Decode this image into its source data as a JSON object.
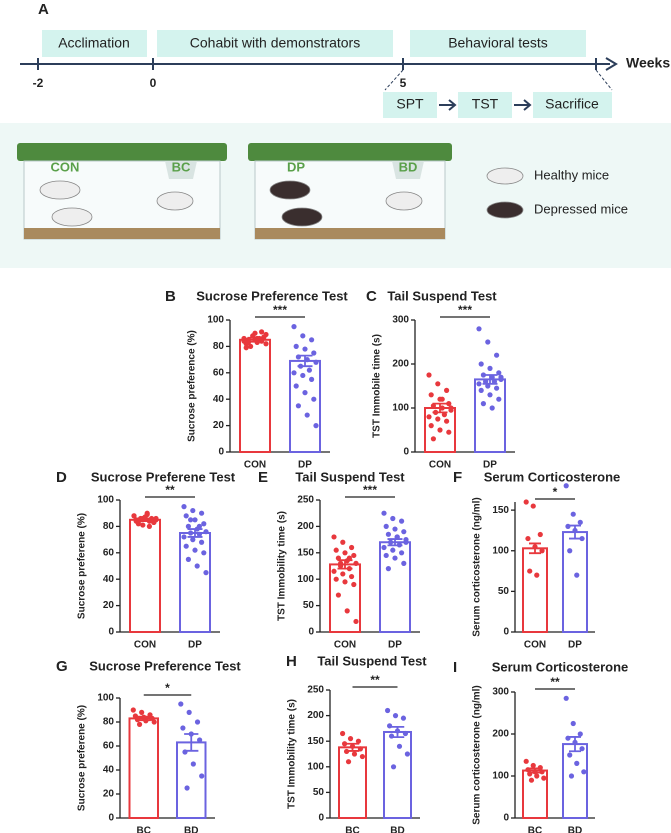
{
  "panel_a": {
    "label": "A",
    "phases": [
      "Acclimation",
      "Cohabit with demonstrators",
      "Behavioral tests"
    ],
    "axis_ticks": [
      "-2",
      "0",
      "5"
    ],
    "axis_label": "Weeks",
    "steps": [
      "SPT",
      "TST",
      "Sacrifice"
    ]
  },
  "housing": {
    "cages": [
      [
        "CON",
        "BC"
      ],
      [
        "DP",
        "BD"
      ]
    ],
    "legend": [
      "Healthy mice",
      "Depressed mice"
    ]
  },
  "chart_data": [
    {
      "type": "bar",
      "panel": "B",
      "title": "Sucrose Preference Test",
      "ylabel": "Sucrose  preference (%)",
      "categories": [
        "CON",
        "DP"
      ],
      "colors": [
        "#e8383d",
        "#6b63e0"
      ],
      "values": [
        85,
        69
      ],
      "errors": [
        1.5,
        4
      ],
      "significance": "***",
      "ylim": [
        0,
        100
      ],
      "yticks": [
        0,
        20,
        40,
        60,
        80,
        100
      ],
      "points": [
        [
          86,
          88,
          84,
          82,
          90,
          87,
          85,
          83,
          89,
          80,
          86,
          84,
          88,
          91,
          79,
          85,
          87,
          83,
          86,
          82
        ],
        [
          95,
          88,
          85,
          80,
          78,
          75,
          72,
          70,
          68,
          65,
          62,
          60,
          58,
          55,
          50,
          45,
          40,
          35,
          28,
          20
        ]
      ]
    },
    {
      "type": "bar",
      "panel": "C",
      "title": "Tail Suspend Test",
      "ylabel": "TST Immobile  time (s)",
      "categories": [
        "CON",
        "DP"
      ],
      "colors": [
        "#e8383d",
        "#6b63e0"
      ],
      "values": [
        100,
        165
      ],
      "errors": [
        10,
        10
      ],
      "significance": "***",
      "ylim": [
        0,
        300
      ],
      "yticks": [
        0,
        100,
        200,
        300
      ],
      "points": [
        [
          175,
          155,
          140,
          130,
          120,
          110,
          105,
          100,
          95,
          90,
          85,
          80,
          75,
          70,
          60,
          50,
          45,
          30,
          120,
          100
        ],
        [
          280,
          250,
          220,
          200,
          190,
          180,
          175,
          170,
          165,
          160,
          160,
          155,
          150,
          145,
          140,
          130,
          120,
          110,
          100,
          170
        ]
      ]
    },
    {
      "type": "bar",
      "panel": "D",
      "title": "Sucrose Preferene Test",
      "ylabel": "Sucrose preferene (%)",
      "categories": [
        "CON",
        "DP"
      ],
      "colors": [
        "#e8383d",
        "#6b63e0"
      ],
      "values": [
        85,
        75
      ],
      "errors": [
        1,
        3
      ],
      "significance": "**",
      "ylim": [
        0,
        100
      ],
      "yticks": [
        0,
        20,
        40,
        60,
        80,
        100
      ],
      "points": [
        [
          88,
          86,
          85,
          84,
          87,
          83,
          82,
          89,
          86,
          85,
          84,
          88,
          81,
          86,
          85,
          87,
          83,
          84,
          90,
          85,
          86,
          80
        ],
        [
          95,
          92,
          90,
          88,
          85,
          82,
          80,
          78,
          76,
          75,
          74,
          72,
          70,
          68,
          65,
          62,
          60,
          55,
          50,
          45,
          85,
          80
        ]
      ]
    },
    {
      "type": "bar",
      "panel": "E",
      "title": "Tail Suspend Test",
      "ylabel": "TST Immobility time (s)",
      "categories": [
        "CON",
        "DP"
      ],
      "colors": [
        "#e8383d",
        "#6b63e0"
      ],
      "values": [
        128,
        170
      ],
      "errors": [
        8,
        6
      ],
      "significance": "***",
      "ylim": [
        0,
        250
      ],
      "yticks": [
        0,
        50,
        100,
        150,
        200,
        250
      ],
      "points": [
        [
          180,
          170,
          160,
          155,
          150,
          145,
          140,
          135,
          130,
          125,
          120,
          115,
          110,
          105,
          100,
          95,
          90,
          70,
          40,
          20,
          130,
          140
        ],
        [
          225,
          215,
          210,
          200,
          195,
          190,
          185,
          180,
          175,
          170,
          165,
          160,
          155,
          150,
          145,
          140,
          130,
          120,
          180,
          170
        ]
      ]
    },
    {
      "type": "bar",
      "panel": "F",
      "title": "Serum Corticosterone",
      "ylabel": "Serum corticosterone (ng/ml)",
      "categories": [
        "CON",
        "DP"
      ],
      "colors": [
        "#e8383d",
        "#6b63e0"
      ],
      "values": [
        103,
        123
      ],
      "errors": [
        6,
        8
      ],
      "significance": "*",
      "ylim": [
        0,
        160
      ],
      "yticks": [
        0,
        50,
        100,
        150
      ],
      "points": [
        [
          160,
          155,
          120,
          115,
          105,
          100,
          75,
          70
        ],
        [
          180,
          145,
          135,
          130,
          125,
          115,
          100,
          70
        ]
      ]
    },
    {
      "type": "bar",
      "panel": "G",
      "title": "Sucrose Preference Test",
      "ylabel": "Sucrose preferene (%)",
      "categories": [
        "BC",
        "BD"
      ],
      "colors": [
        "#e8383d",
        "#6b63e0"
      ],
      "values": [
        83,
        63
      ],
      "errors": [
        1.5,
        7
      ],
      "significance": "*",
      "ylim": [
        0,
        100
      ],
      "yticks": [
        0,
        20,
        40,
        60,
        80,
        100
      ],
      "points": [
        [
          90,
          88,
          86,
          85,
          84,
          83,
          82,
          81,
          80,
          78
        ],
        [
          95,
          88,
          80,
          75,
          70,
          65,
          55,
          45,
          35,
          25
        ]
      ]
    },
    {
      "type": "bar",
      "panel": "H",
      "title": "Tail Suspend Test",
      "ylabel": "TST Immobility time (s)",
      "categories": [
        "BC",
        "BD"
      ],
      "colors": [
        "#e8383d",
        "#6b63e0"
      ],
      "values": [
        138,
        168
      ],
      "errors": [
        7,
        10
      ],
      "significance": "**",
      "ylim": [
        0,
        250
      ],
      "yticks": [
        0,
        50,
        100,
        150,
        200,
        250
      ],
      "points": [
        [
          165,
          155,
          150,
          145,
          140,
          135,
          130,
          125,
          120,
          110
        ],
        [
          210,
          200,
          195,
          180,
          170,
          165,
          160,
          140,
          125,
          100
        ]
      ]
    },
    {
      "type": "bar",
      "panel": "I",
      "title": "Serum Corticosterone",
      "ylabel": "Serum corticosterone (ng/ml)",
      "categories": [
        "BC",
        "BD"
      ],
      "colors": [
        "#e8383d",
        "#6b63e0"
      ],
      "values": [
        113,
        176
      ],
      "errors": [
        5,
        17
      ],
      "significance": "**",
      "ylim": [
        0,
        300
      ],
      "yticks": [
        0,
        100,
        200,
        300
      ],
      "points": [
        [
          135,
          125,
          120,
          115,
          110,
          110,
          105,
          100,
          95,
          90
        ],
        [
          285,
          225,
          200,
          190,
          180,
          165,
          150,
          130,
          110,
          100
        ]
      ]
    }
  ]
}
